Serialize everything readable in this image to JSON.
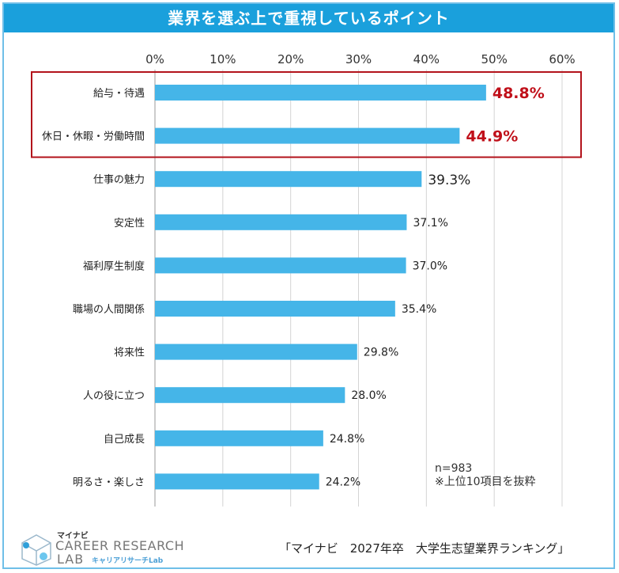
{
  "chart_data": {
    "type": "bar",
    "orientation": "horizontal",
    "title": "業界を選ぶ上で重視しているポイント",
    "categories": [
      "給与・待遇",
      "休日・休暇・労働時間",
      "仕事の魅力",
      "安定性",
      "福利厚生制度",
      "職場の人間関係",
      "将来性",
      "人の役に立つ",
      "自己成長",
      "明るさ・楽しさ"
    ],
    "values": [
      48.8,
      44.9,
      39.3,
      37.1,
      37.0,
      35.4,
      29.8,
      28.0,
      24.8,
      24.2
    ],
    "value_labels": [
      "48.8%",
      "44.9%",
      "39.3%",
      "37.1%",
      "37.0%",
      "35.4%",
      "29.8%",
      "28.0%",
      "24.8%",
      "24.2%"
    ],
    "xlim": [
      0,
      60
    ],
    "xticks": [
      "0%",
      "10%",
      "20%",
      "30%",
      "40%",
      "50%",
      "60%"
    ],
    "grid": true,
    "highlighted_count": 2,
    "bar_color": "#45b5e8",
    "highlight_color": "#c0101a"
  },
  "note": {
    "n": "n=983",
    "footnote": "※上位10項目を抜粋"
  },
  "source": "「マイナビ　2027年卒　大学生志望業界ランキング」",
  "logo": {
    "brand": "マイナビ",
    "line1": "CAREER RESEARCH",
    "line2": "LAB",
    "sub": "キャリアリサーチLab"
  }
}
